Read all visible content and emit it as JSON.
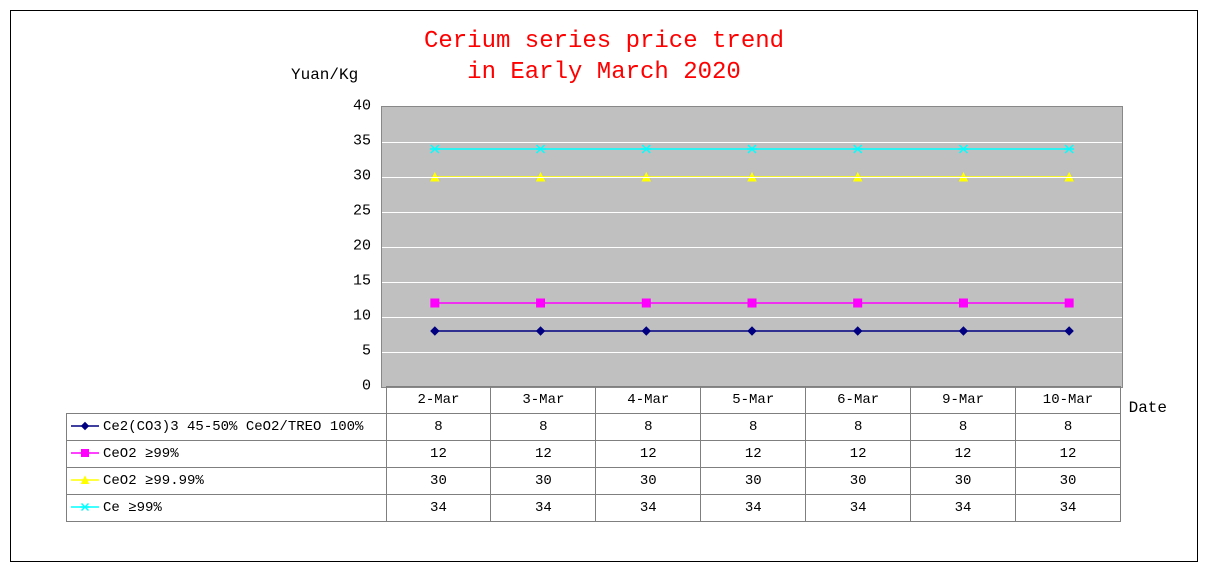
{
  "chart": {
    "title_line1": "Cerium series price trend",
    "title_line2": "in Early March 2020",
    "title_color": "#ff0000",
    "title_fontsize": 24,
    "ylabel": "Yuan/Kg",
    "xlabel": "Date",
    "label_fontsize": 16,
    "ylim": [
      0,
      40
    ],
    "ytick_step": 5,
    "yticks": [
      0,
      5,
      10,
      15,
      20,
      25,
      30,
      35,
      40
    ],
    "plot_background": "#c0c0c0",
    "gridline_color": "#ffffff",
    "outer_border_color": "#000000",
    "table_border_color": "#7f7f7f",
    "categories": [
      "2-Mar",
      "3-Mar",
      "4-Mar",
      "5-Mar",
      "6-Mar",
      "9-Mar",
      "10-Mar"
    ],
    "series": [
      {
        "label": "Ce2(CO3)3 45-50% CeO2/TREO 100%",
        "values": [
          8,
          8,
          8,
          8,
          8,
          8,
          8
        ],
        "color": "#000080",
        "marker": "diamond"
      },
      {
        "label": "CeO2 ≥99%",
        "values": [
          12,
          12,
          12,
          12,
          12,
          12,
          12
        ],
        "color": "#ff00ff",
        "marker": "square"
      },
      {
        "label": "CeO2 ≥99.99%",
        "values": [
          30,
          30,
          30,
          30,
          30,
          30,
          30
        ],
        "color": "#ffff00",
        "marker": "triangle"
      },
      {
        "label": "Ce  ≥99%",
        "values": [
          34,
          34,
          34,
          34,
          34,
          34,
          34
        ],
        "color": "#00ffff",
        "marker": "x"
      }
    ]
  }
}
